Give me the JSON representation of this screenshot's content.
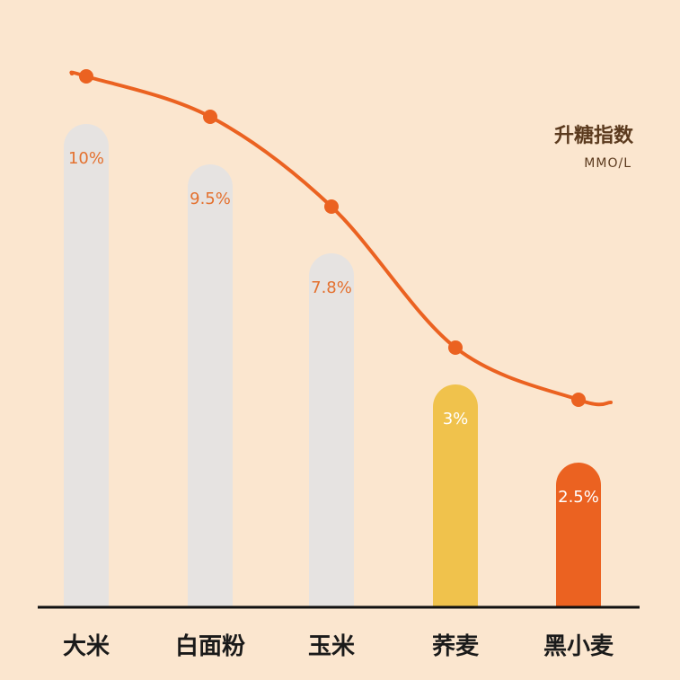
{
  "chart_data": {
    "type": "bar",
    "categories": [
      "大米",
      "白面粉",
      "玉米",
      "荞麦",
      "黑小麦"
    ],
    "values": [
      10,
      9.5,
      7.8,
      3,
      2.5
    ],
    "value_labels": [
      "10%",
      "9.5%",
      "7.8%",
      "3%",
      "2.5%"
    ],
    "ylim": [
      0,
      10
    ],
    "grid": false,
    "legend": {
      "title": "升糖指数",
      "unit": "MMO/L",
      "placement": "top-right"
    },
    "line_series": {
      "values": [
        10,
        9.5,
        7.8,
        3,
        2.5
      ]
    }
  },
  "colors": {
    "background": "#FBE6CF",
    "bar_default": "#E6E3E1",
    "bar_highlight_yellow": "#F0C24C",
    "bar_highlight_orange": "#EB6221",
    "label_on_gray": "#E4712F",
    "label_on_color": "#FFFFFF",
    "line": "#EB6221",
    "axis": "#111111"
  },
  "bar_colors": [
    "#E6E3E1",
    "#E6E3E1",
    "#E6E3E1",
    "#F0C24C",
    "#EB6221"
  ],
  "label_colors": [
    "#E4712F",
    "#E4712F",
    "#E4712F",
    "#FFFFFF",
    "#FFFFFF"
  ]
}
